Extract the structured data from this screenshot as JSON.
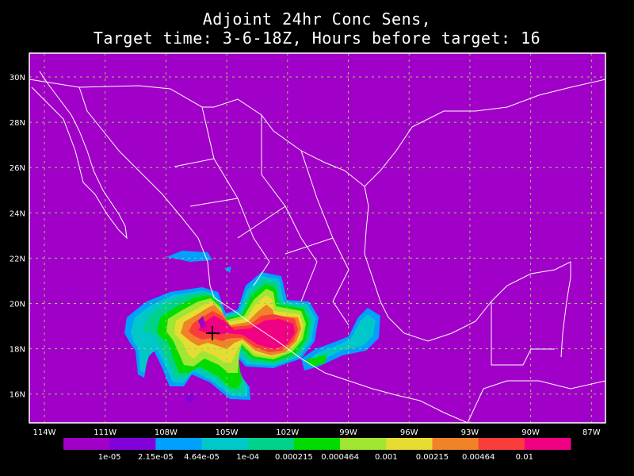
{
  "title": {
    "line1": "Adjoint 24hr Conc Sens,",
    "line2": "Target time: 3-6-18Z, Hours before target: 16"
  },
  "map": {
    "background_color": "#a000c8",
    "grid": true,
    "grid_color": "#9ccc66",
    "boundary_color": "#ffffff",
    "lat_labels": [
      "30N",
      "28N",
      "26N",
      "24N",
      "22N",
      "20N",
      "18N",
      "16N"
    ],
    "lon_labels": [
      "114W",
      "111W",
      "108W",
      "105W",
      "102W",
      "99W",
      "96W",
      "93W",
      "90W",
      "87W"
    ],
    "marker": "cross"
  },
  "colorbar": {
    "colors": [
      "#a000c8",
      "#8200dc",
      "#00a0ff",
      "#00c8c8",
      "#00d28c",
      "#00dc00",
      "#a0e632",
      "#e6dc32",
      "#f08228",
      "#fa3c3c",
      "#f00082"
    ],
    "labels": [
      "1e-05",
      "2.15e-05",
      "4.64e-05",
      "1e-04",
      "0.000215",
      "0.000464",
      "0.001",
      "0.00215",
      "0.00464",
      "0.01"
    ]
  }
}
